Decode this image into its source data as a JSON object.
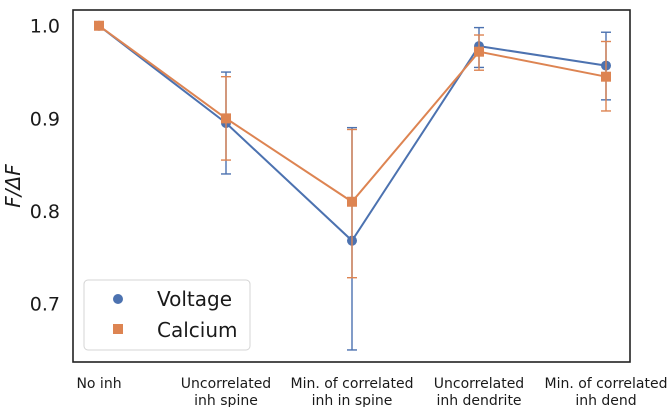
{
  "chart_data": {
    "type": "line",
    "title": "",
    "xlabel": "",
    "ylabel": "F/ΔF",
    "categories": [
      [
        "No inh"
      ],
      [
        "Uncorrelated",
        "inh spine"
      ],
      [
        "Min. of correlated",
        "inh in spine"
      ],
      [
        "Uncorrelated",
        "inh dendrite"
      ],
      [
        "Min. of correlated",
        "inh dend"
      ]
    ],
    "ylim": [
      0.637,
      1.017
    ],
    "yticks": [
      0.7,
      0.8,
      0.9,
      1.0
    ],
    "ytick_labels": [
      "0.7",
      "0.8",
      "0.9",
      "1.0"
    ],
    "grid": false,
    "legend_position": "bottom-left",
    "series": [
      {
        "name": "Voltage",
        "marker": "circle",
        "color": "#4c72b0",
        "values": [
          1.0,
          0.895,
          0.768,
          0.978,
          0.957
        ],
        "err_low": [
          1.0,
          0.84,
          0.65,
          0.955,
          0.92
        ],
        "err_high": [
          1.0,
          0.95,
          0.89,
          0.998,
          0.993
        ]
      },
      {
        "name": "Calcium",
        "marker": "square",
        "color": "#dd8452",
        "values": [
          1.0,
          0.9,
          0.81,
          0.972,
          0.945
        ],
        "err_low": [
          1.0,
          0.855,
          0.728,
          0.952,
          0.908
        ],
        "err_high": [
          1.0,
          0.945,
          0.888,
          0.99,
          0.983
        ]
      }
    ]
  }
}
